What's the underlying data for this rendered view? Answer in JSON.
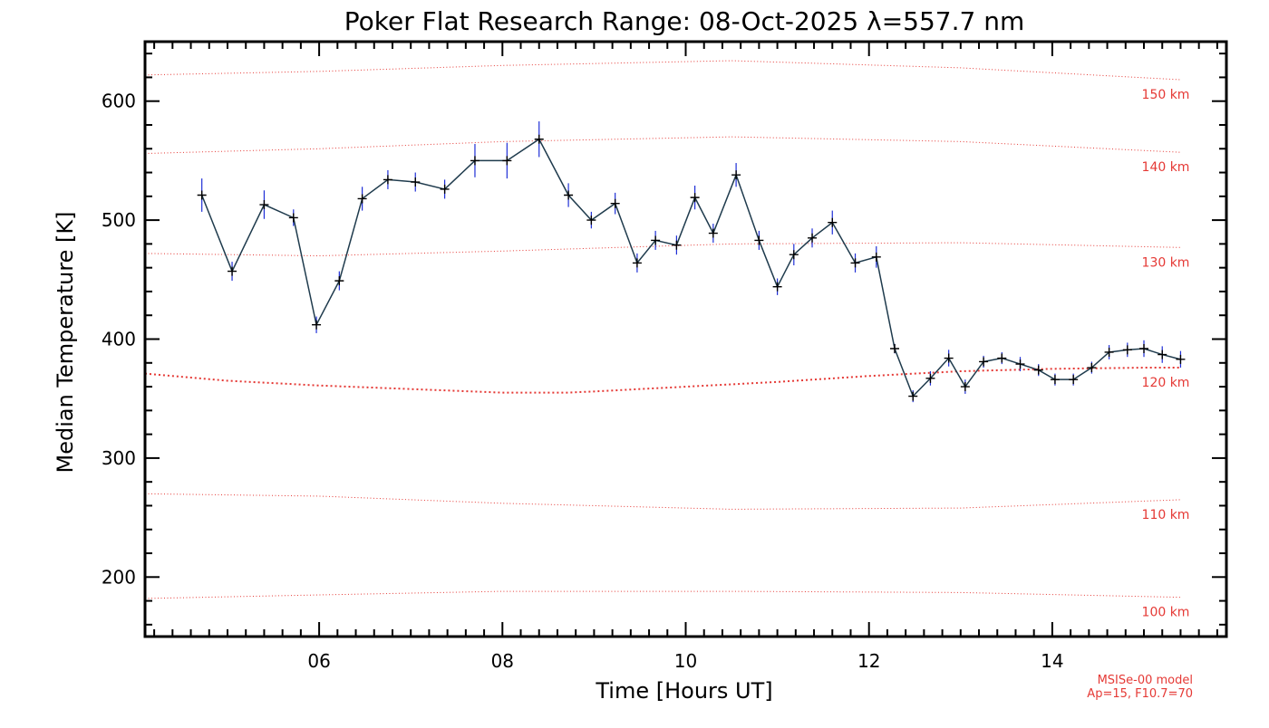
{
  "chart_data": {
    "type": "line",
    "title": "Poker Flat Research Range: 08-Oct-2025 λ=557.7 nm",
    "xlabel": "Time [Hours UT]",
    "ylabel": "Median Temperature [K]",
    "xlim": [
      4.1,
      15.9
    ],
    "ylim": [
      150,
      650
    ],
    "x_ticks": [
      6,
      8,
      10,
      12,
      14
    ],
    "x_tick_labels": [
      "06",
      "08",
      "10",
      "12",
      "14"
    ],
    "y_ticks": [
      200,
      300,
      400,
      500,
      600
    ],
    "y_tick_labels": [
      "200",
      "300",
      "400",
      "500",
      "600"
    ],
    "grid": false,
    "colors": {
      "line": "#1f3b4d",
      "error_bar": "#1f2fd6",
      "model": "#e53935",
      "marker": "#000000"
    },
    "series": [
      {
        "x": [
          4.72,
          5.05,
          5.4,
          5.72,
          5.97,
          6.22,
          6.47,
          6.75,
          7.05,
          7.37,
          7.7,
          8.05,
          8.4,
          8.72,
          8.97,
          9.23,
          9.47,
          9.67,
          9.9,
          10.1,
          10.3,
          10.55,
          10.8,
          11.0,
          11.18,
          11.38,
          11.6,
          11.85,
          12.08,
          12.28,
          12.48,
          12.67,
          12.87,
          13.05,
          13.25,
          13.45,
          13.65,
          13.85,
          14.03,
          14.23,
          14.43,
          14.62,
          14.82,
          15.0,
          15.2,
          15.4
        ],
        "values": [
          521,
          457,
          513,
          502,
          412,
          449,
          518,
          534,
          532,
          526,
          550,
          550,
          568,
          521,
          500,
          514,
          464,
          483,
          479,
          519,
          489,
          538,
          483,
          444,
          471,
          485,
          498,
          464,
          469,
          392,
          352,
          367,
          384,
          360,
          381,
          384,
          379,
          374,
          366,
          366,
          376,
          389,
          391,
          392,
          387,
          383
        ],
        "errors": [
          14,
          8,
          12,
          7,
          7,
          8,
          10,
          8,
          8,
          8,
          14,
          15,
          15,
          10,
          7,
          9,
          8,
          8,
          8,
          10,
          8,
          10,
          8,
          7,
          9,
          8,
          10,
          8,
          9,
          4,
          5,
          6,
          7,
          6,
          5,
          5,
          6,
          5,
          5,
          5,
          5,
          6,
          6,
          7,
          7,
          7
        ]
      }
    ],
    "model_curves": [
      {
        "label": "150 km",
        "x": [
          4.1,
          6,
          8,
          10.5,
          13,
          15.4
        ],
        "values": [
          622,
          625,
          630,
          634,
          628,
          618
        ]
      },
      {
        "label": "140 km",
        "x": [
          4.1,
          6,
          8,
          10.5,
          13,
          15.4
        ],
        "values": [
          556,
          560,
          566,
          570,
          566,
          557
        ]
      },
      {
        "label": "130 km",
        "x": [
          4.1,
          6,
          8,
          10.5,
          13,
          15.4
        ],
        "values": [
          472,
          470,
          474,
          480,
          481,
          477
        ]
      },
      {
        "label": "120 km",
        "x": [
          4.1,
          5,
          6,
          7,
          8,
          8.7,
          9,
          10,
          11,
          12,
          13,
          14,
          15,
          15.4
        ],
        "values": [
          371,
          365,
          361,
          358,
          355,
          355,
          356,
          360,
          364,
          369,
          373,
          375,
          376,
          376
        ]
      },
      {
        "label": "110 km",
        "x": [
          4.1,
          6,
          8,
          10.5,
          13,
          15.4
        ],
        "values": [
          270,
          268,
          262,
          257,
          258,
          265
        ]
      },
      {
        "label": "100 km",
        "x": [
          4.1,
          6,
          8,
          10.5,
          13,
          15.4
        ],
        "values": [
          182,
          185,
          188,
          188,
          187,
          183
        ]
      }
    ],
    "model_note": [
      "MSISe-00 model",
      "Ap=15, F10.7=70"
    ]
  }
}
